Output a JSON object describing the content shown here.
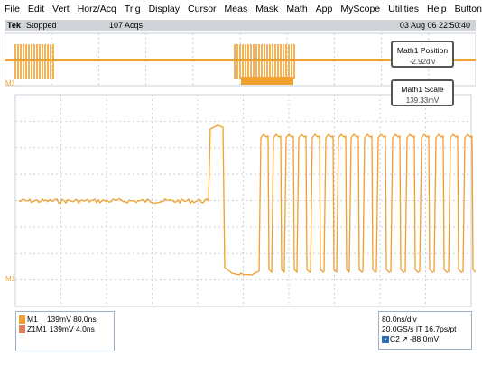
{
  "menu": [
    "File",
    "Edit",
    "Vert",
    "Horz/Acq",
    "Trig",
    "Display",
    "Cursor",
    "Meas",
    "Mask",
    "Math",
    "App",
    "MyScope",
    "Utilities",
    "Help",
    "Button"
  ],
  "status": {
    "brand": "Tek",
    "state": "Stopped",
    "acqs": "107 Acqs",
    "datetime": "03 Aug 06 22:50:40"
  },
  "readouts": {
    "position": {
      "title": "Math1 Position",
      "value": "-2.92div"
    },
    "scale": {
      "title": "Math1 Scale",
      "value": "139.33mV"
    }
  },
  "markers": {
    "overview": "M1",
    "main": "M1"
  },
  "left_panel": {
    "line1_label": "M1",
    "line1_value": "139mV 80.0ns",
    "line2_label": "Z1M1",
    "line2_value": "139mV 4.0ns"
  },
  "right_panel": {
    "timebase": "80.0ns/div",
    "rate": "20.0GS/s IT 16.7ps/pt",
    "trigger_channel": "C2",
    "trigger_slope": "↗",
    "trigger_level": "-88.0mV"
  },
  "colors": {
    "trace": "#f0a030",
    "grid": "#c8d0da",
    "panel_border": "#9db0c6"
  }
}
